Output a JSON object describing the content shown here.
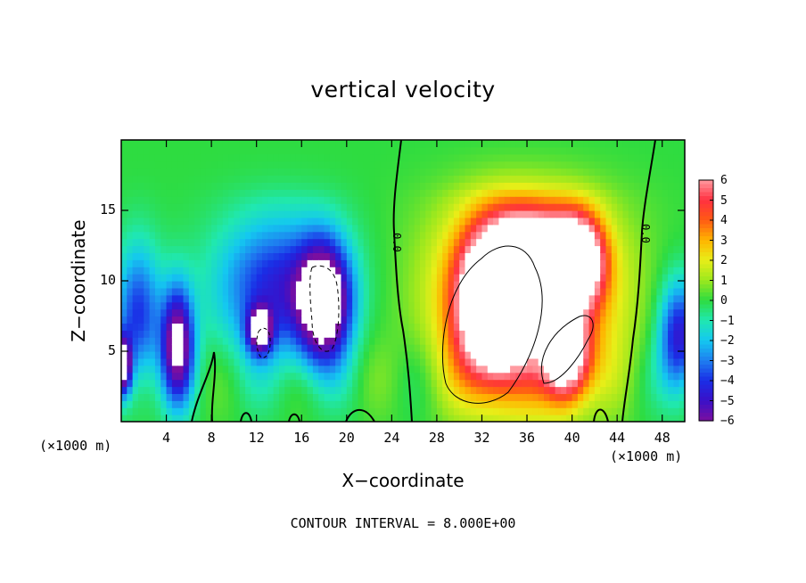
{
  "chart_data": {
    "type": "heatmap",
    "title": "vertical velocity",
    "xlabel": "X−coordinate",
    "ylabel": "Z−coordinate",
    "x_unit_left": "(×1000 m)",
    "x_unit_right": "(×1000 m)",
    "xlim": [
      0,
      50
    ],
    "ylim": [
      0,
      20
    ],
    "x_ticks": [
      4,
      8,
      12,
      16,
      20,
      24,
      28,
      32,
      36,
      40,
      44,
      48
    ],
    "y_ticks": [
      5,
      10,
      15
    ],
    "colorbar": {
      "ticks": [
        "6",
        "5",
        "4",
        "3",
        "2",
        "1",
        "0",
        "−1",
        "−2",
        "−3",
        "−4",
        "−5",
        "−6"
      ],
      "range": [
        -6,
        6
      ],
      "saturated_color": "#ffffff"
    },
    "contour_line_label": "0.0",
    "contour_interval_text": "CONTOUR INTERVAL = 8.000E+00",
    "features": [
      {
        "kind": "downdraft",
        "x": 5.0,
        "z": 5.5,
        "amp": -7,
        "sx": 1.4,
        "sz": 4
      },
      {
        "kind": "downdraft",
        "x": 14.0,
        "z": 9.5,
        "amp": -4.5,
        "sx": 5.5,
        "sz": 5
      },
      {
        "kind": "downdraft",
        "x": 12.3,
        "z": 6.5,
        "amp": -6,
        "sx": 1.1,
        "sz": 1.6
      },
      {
        "kind": "downdraft",
        "x": 18.0,
        "z": 8.5,
        "amp": -8,
        "sx": 2.2,
        "sz": 4
      },
      {
        "kind": "downdraft",
        "x": 1.5,
        "z": 7.5,
        "amp": -4,
        "sx": 2.0,
        "sz": 5
      },
      {
        "kind": "downdraft",
        "x": 0.2,
        "z": 4.0,
        "amp": -7,
        "sx": 0.7,
        "sz": 2
      },
      {
        "kind": "downdraft",
        "x": 49.5,
        "z": 6.0,
        "amp": -5,
        "sx": 1.8,
        "sz": 4
      },
      {
        "kind": "updraft",
        "x": 36.0,
        "z": 9.0,
        "amp": 6,
        "sx": 7.5,
        "sz": 7
      },
      {
        "kind": "updraft",
        "x": 33.0,
        "z": 8.0,
        "amp": 9,
        "sx": 3.0,
        "sz": 5
      },
      {
        "kind": "updraft",
        "x": 36.5,
        "z": 11.5,
        "amp": 8,
        "sx": 3.5,
        "sz": 3
      },
      {
        "kind": "updraft",
        "x": 40.5,
        "z": 11.5,
        "amp": 8,
        "sx": 2.2,
        "sz": 3
      },
      {
        "kind": "updraft",
        "x": 39.5,
        "z": 4.5,
        "amp": 7,
        "sx": 2.0,
        "sz": 3
      }
    ]
  }
}
